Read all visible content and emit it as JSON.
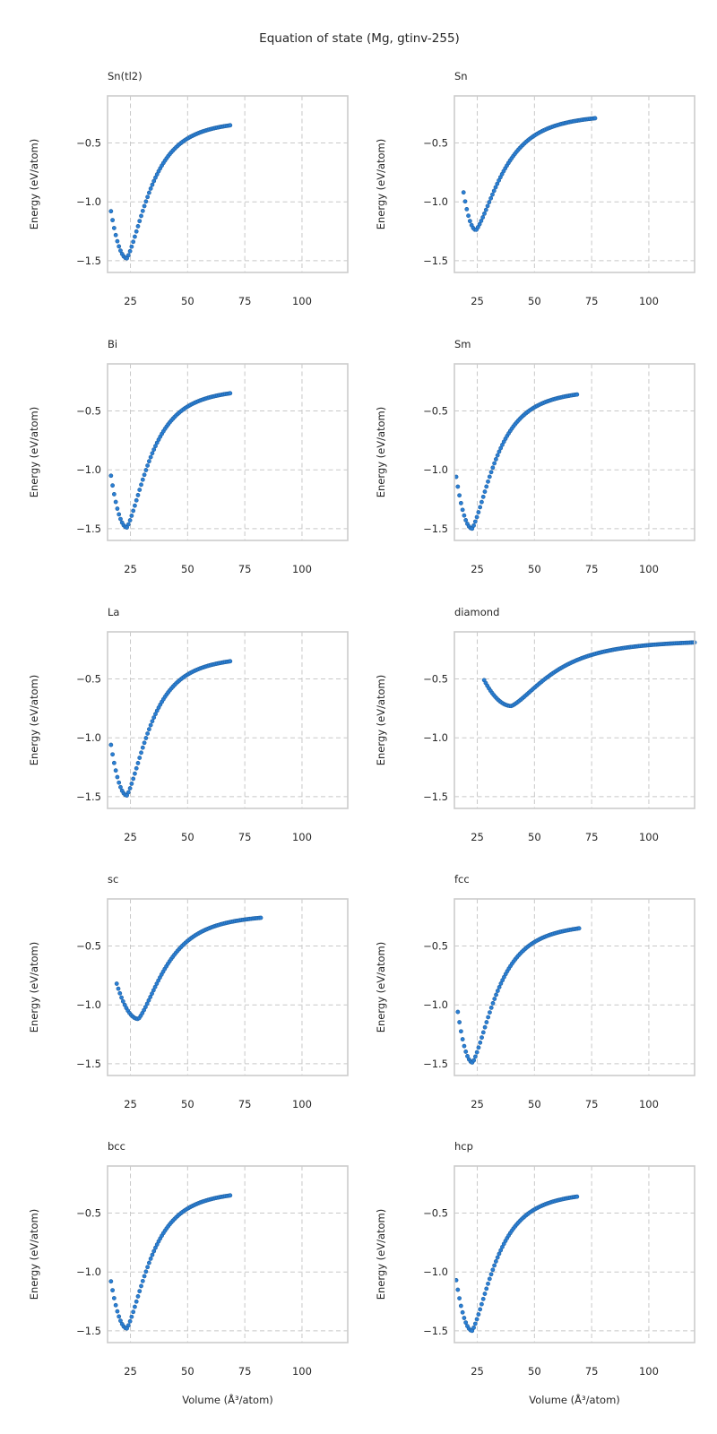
{
  "title": "Equation of state (Mg, gtinv-255)",
  "chart_data": {
    "type": "scatter",
    "layout": {
      "rows": 5,
      "cols": 2
    },
    "xlabel": "Volume (Å³/atom)",
    "ylabel": "Energy (eV/atom)",
    "xlim": [
      15,
      120
    ],
    "ylim": [
      -1.6,
      -0.1
    ],
    "xticks": [
      25,
      50,
      75,
      100
    ],
    "yticks": [
      -1.5,
      -1.0,
      -0.5
    ],
    "ytick_labels": [
      "−1.5",
      "−1.0",
      "−0.5"
    ],
    "grid": true,
    "color": "#2a7fd4",
    "panels": [
      {
        "title": "Sn(tl2)",
        "x_range": [
          16.5,
          68.6
        ],
        "minimum": {
          "x": 23.5,
          "y": -1.48
        },
        "start_y": -1.08,
        "end_y": -0.35
      },
      {
        "title": "Sn",
        "x_range": [
          19.0,
          76.5
        ],
        "minimum": {
          "x": 24.5,
          "y": -1.24
        },
        "start_y": -0.92,
        "end_y": -0.29
      },
      {
        "title": "Bi",
        "x_range": [
          16.5,
          68.6
        ],
        "minimum": {
          "x": 23.5,
          "y": -1.49
        },
        "start_y": -1.05,
        "end_y": -0.35
      },
      {
        "title": "Sm",
        "x_range": [
          15.8,
          68.6
        ],
        "minimum": {
          "x": 22.8,
          "y": -1.5
        },
        "start_y": -1.06,
        "end_y": -0.36
      },
      {
        "title": "La",
        "x_range": [
          16.5,
          68.6
        ],
        "minimum": {
          "x": 23.5,
          "y": -1.49
        },
        "start_y": -1.06,
        "end_y": -0.35
      },
      {
        "title": "diamond",
        "x_range": [
          28.0,
          120.0
        ],
        "minimum": {
          "x": 40.0,
          "y": -0.73
        },
        "start_y": -0.51,
        "end_y": -0.19
      },
      {
        "title": "sc",
        "x_range": [
          19.0,
          82.0
        ],
        "minimum": {
          "x": 28.5,
          "y": -1.12
        },
        "start_y": -0.82,
        "end_y": -0.26
      },
      {
        "title": "fcc",
        "x_range": [
          16.5,
          69.5
        ],
        "minimum": {
          "x": 23.0,
          "y": -1.49
        },
        "start_y": -1.06,
        "end_y": -0.35
      },
      {
        "title": "bcc",
        "x_range": [
          16.5,
          68.6
        ],
        "minimum": {
          "x": 23.5,
          "y": -1.48
        },
        "start_y": -1.08,
        "end_y": -0.35
      },
      {
        "title": "hcp",
        "x_range": [
          15.8,
          68.6
        ],
        "minimum": {
          "x": 22.8,
          "y": -1.5
        },
        "start_y": -1.07,
        "end_y": -0.36
      }
    ]
  }
}
